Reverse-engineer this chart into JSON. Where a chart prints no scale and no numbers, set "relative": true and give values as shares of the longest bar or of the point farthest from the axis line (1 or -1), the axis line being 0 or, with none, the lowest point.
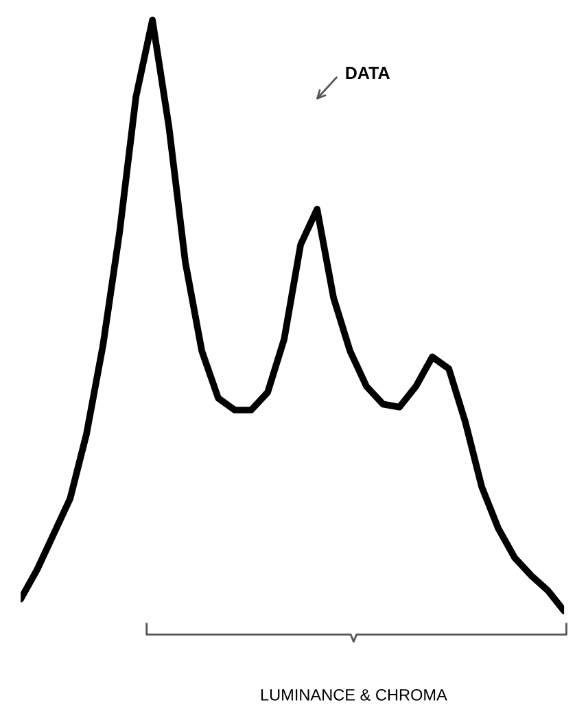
{
  "chart_data": {
    "type": "line",
    "relative": true,
    "categories": [
      null,
      null,
      null,
      null,
      null,
      null,
      null,
      null,
      null,
      null,
      null,
      null,
      null,
      null,
      null,
      null,
      null,
      null,
      null,
      null,
      null,
      null,
      null,
      null,
      null,
      null,
      null,
      null,
      null,
      null,
      null,
      null,
      null,
      null
    ],
    "series": [
      {
        "color": "#000000",
        "values": [
          0.02,
          0.07,
          0.13,
          0.19,
          0.3,
          0.45,
          0.64,
          0.87,
          1.0,
          0.82,
          0.59,
          0.44,
          0.36,
          0.34,
          0.34,
          0.37,
          0.46,
          0.62,
          0.68,
          0.53,
          0.44,
          0.38,
          0.35,
          0.345,
          0.38,
          0.43,
          0.41,
          0.32,
          0.21,
          0.14,
          0.09,
          0.06,
          0.035,
          0.0
        ]
      }
    ],
    "annotations": [
      "DATA",
      "LUMINANCE & CHROMA"
    ],
    "grid": false,
    "marker": "none",
    "line_style": "solid"
  }
}
